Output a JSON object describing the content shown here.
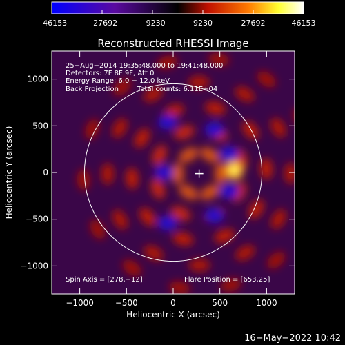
{
  "chart_data": {
    "type": "heatmap",
    "title": "Reconstructed RHESSI Image",
    "xlabel": "Heliocentric X (arcsec)",
    "ylabel": "Heliocentric Y (arcsec)",
    "xlim": [
      -1300,
      1300
    ],
    "ylim": [
      -1300,
      1300
    ],
    "x_ticks": [
      -1000,
      -500,
      0,
      500,
      1000
    ],
    "y_ticks": [
      1000,
      500,
      0,
      -500,
      -1000
    ],
    "x_tick_labels": [
      "−1000",
      "−500",
      "0",
      "500",
      "1000"
    ],
    "y_tick_labels": [
      "1000",
      "500",
      "0",
      "−500",
      "−1000"
    ],
    "colorbar": {
      "min": -46153,
      "max": 46153,
      "tick_values": [
        -46153,
        -27692,
        -9230,
        9230,
        27692,
        46153
      ],
      "tick_labels": [
        "−46153",
        "−27692",
        "−9230",
        "9230",
        "27692",
        "46153"
      ],
      "colormap": [
        "#0000ff",
        "#5a0aa0",
        "#000000",
        "#c01000",
        "#ff7a00",
        "#ffff30",
        "#ffffff"
      ]
    },
    "annotations": {
      "time_range": "25−Aug−2014 19:35:48.000 to 19:41:48.000",
      "detectors": "Detectors: 7F 8F 9F, Att 0",
      "energy": "Energy Range: 6.0 − 12.0 keV",
      "method": "Back Projection",
      "counts": "Total counts: 6.11E+04",
      "spin_axis": "Spin Axis = [278,−12]",
      "flare_position": "Flare Position = [653,25]"
    },
    "spin_axis": [
      278,
      -12
    ],
    "flare_position": [
      653,
      25
    ],
    "solar_limb_radius": 950,
    "grid": false
  },
  "footer": {
    "date": "16−May−2022 10:42"
  }
}
